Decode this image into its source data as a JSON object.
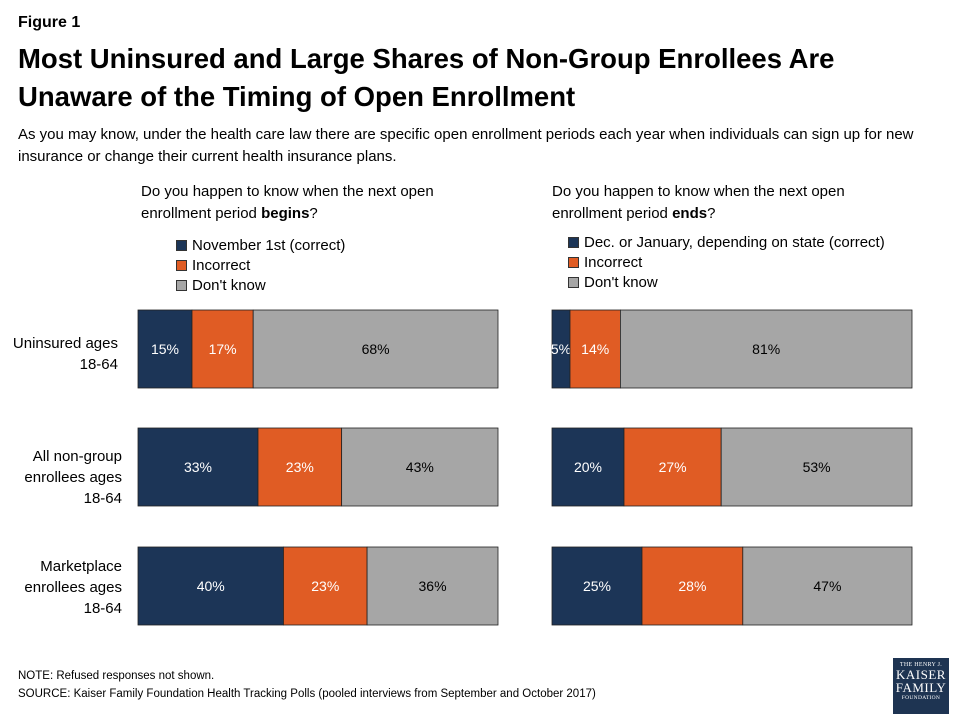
{
  "figure_label": "Figure 1",
  "title": "Most Uninsured and Large Shares of Non-Group Enrollees Are Unaware of the Timing of Open Enrollment",
  "subtitle": "As you may know, under the health care law there are specific open enrollment periods each year when individuals can sign up for new insurance or change their current health insurance plans.",
  "row_labels": [
    "Uninsured ages 18-64",
    "All non-group enrollees ages 18-64",
    "Marketplace enrollees ages 18-64"
  ],
  "note": "NOTE: Refused responses not shown.",
  "source": "SOURCE: Kaiser Family Foundation Health Tracking Polls (pooled interviews from September and October 2017)",
  "logo": {
    "line1": "THE HENRY J.",
    "line2": "KAISER",
    "line3": "FAMILY",
    "line4": "FOUNDATION"
  },
  "colors": {
    "correct": "#1c3557",
    "incorrect": "#e05c24",
    "dont_know": "#a6a6a6"
  },
  "chart_data": [
    {
      "type": "bar",
      "orientation": "horizontal",
      "stacked": true,
      "question": {
        "prefix": "Do you happen to know when the next open enrollment period ",
        "bold": "begins",
        "suffix": "?"
      },
      "categories": [
        "Uninsured ages 18-64",
        "All non-group enrollees ages 18-64",
        "Marketplace enrollees ages 18-64"
      ],
      "series": [
        {
          "name": "November 1st (correct)",
          "values": [
            15,
            33,
            40
          ],
          "labels": [
            "15%",
            "33%",
            "40%"
          ]
        },
        {
          "name": "Incorrect",
          "values": [
            17,
            23,
            23
          ],
          "labels": [
            "17%",
            "23%",
            "23%"
          ]
        },
        {
          "name": "Don't know",
          "values": [
            68,
            43,
            36
          ],
          "labels": [
            "68%",
            "43%",
            "36%"
          ]
        }
      ],
      "legend_position": "top-left"
    },
    {
      "type": "bar",
      "orientation": "horizontal",
      "stacked": true,
      "question": {
        "prefix": "Do you happen to know when the next open enrollment period ",
        "bold": "ends",
        "suffix": "?"
      },
      "categories": [
        "Uninsured ages 18-64",
        "All non-group enrollees ages 18-64",
        "Marketplace enrollees ages 18-64"
      ],
      "series": [
        {
          "name": "Dec. or January, depending on state (correct)",
          "values": [
            5,
            20,
            25
          ],
          "labels": [
            "5%",
            "20%",
            "25%"
          ]
        },
        {
          "name": "Incorrect",
          "values": [
            14,
            27,
            28
          ],
          "labels": [
            "14%",
            "27%",
            "28%"
          ]
        },
        {
          "name": "Don't know",
          "values": [
            81,
            53,
            47
          ],
          "labels": [
            "81%",
            "53%",
            "47%"
          ]
        }
      ],
      "legend_position": "top-left"
    }
  ]
}
